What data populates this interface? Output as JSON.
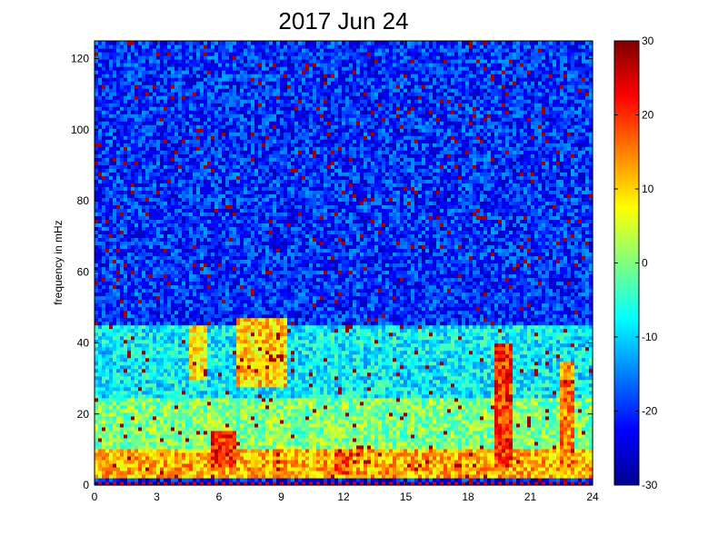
{
  "chart_data": {
    "type": "heatmap",
    "title": "2017 Jun 24",
    "xlabel": "",
    "ylabel": "frequency in mHz",
    "xlim": [
      0,
      24
    ],
    "ylim": [
      0,
      125
    ],
    "x_ticks": [
      0,
      3,
      6,
      9,
      12,
      15,
      18,
      21,
      24
    ],
    "y_ticks": [
      0,
      20,
      40,
      60,
      80,
      100,
      120
    ],
    "colorbar": {
      "colormap": "jet",
      "clim": [
        -30,
        30
      ],
      "ticks": [
        -30,
        -20,
        -10,
        0,
        10,
        20,
        30
      ]
    },
    "features": [
      {
        "x": [
          0,
          24
        ],
        "y": [
          2,
          10
        ],
        "level": 12
      },
      {
        "x": [
          0,
          24
        ],
        "y": [
          10,
          25
        ],
        "level": 0
      },
      {
        "x": [
          0,
          24
        ],
        "y": [
          25,
          45
        ],
        "level": -8
      },
      {
        "x": [
          0,
          24
        ],
        "y": [
          45,
          125
        ],
        "level": -20
      },
      {
        "x": [
          4.5,
          5.5
        ],
        "y": [
          30,
          45
        ],
        "level": 8
      },
      {
        "x": [
          6.8,
          9.3
        ],
        "y": [
          28,
          47
        ],
        "level": 10
      },
      {
        "x": [
          5.6,
          6.8
        ],
        "y": [
          5,
          15
        ],
        "level": 20
      },
      {
        "x": [
          19.2,
          20.2
        ],
        "y": [
          5,
          40
        ],
        "level": 20
      },
      {
        "x": [
          22.4,
          23.2
        ],
        "y": [
          5,
          35
        ],
        "level": 15
      },
      {
        "x": [
          11.5,
          12.5
        ],
        "y": [
          3,
          10
        ],
        "level": 18
      }
    ]
  }
}
